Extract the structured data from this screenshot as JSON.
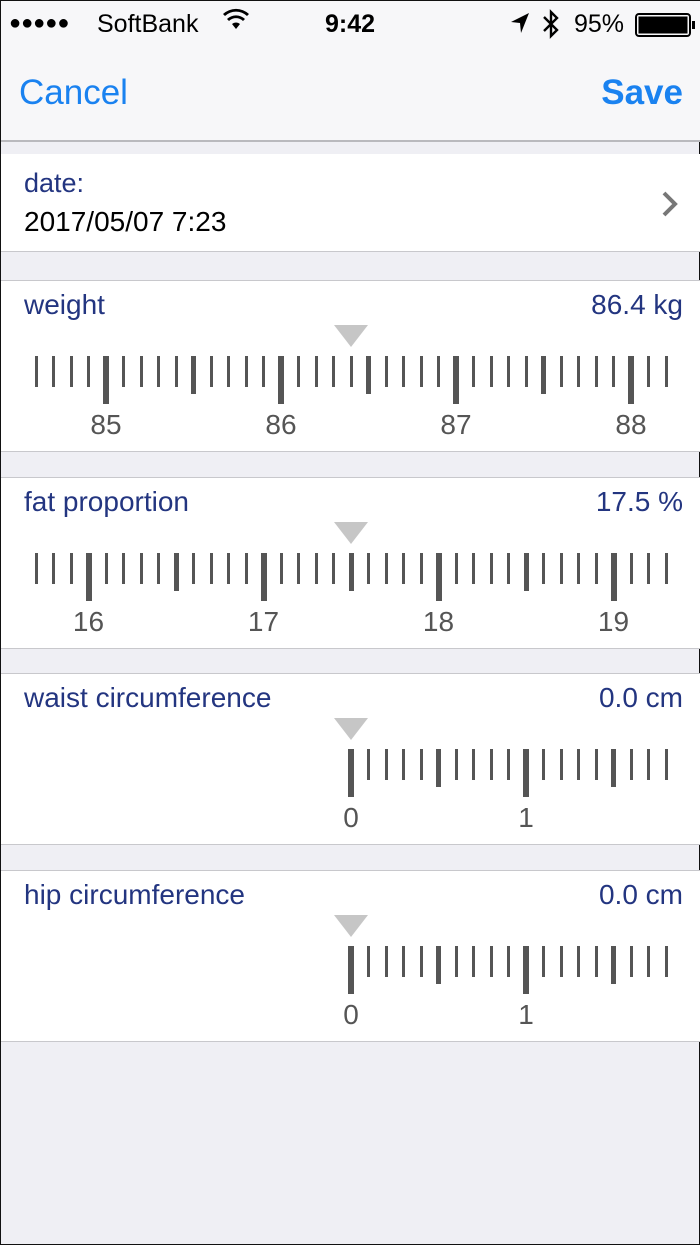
{
  "status_bar": {
    "signal": "●●●●●",
    "carrier": "SoftBank",
    "wifi_icon": "wifi-icon",
    "time": "9:42",
    "location_icon": "location-arrow-icon",
    "bluetooth_icon": "bluetooth-icon",
    "battery": "95%",
    "battery_level": 0.95
  },
  "nav": {
    "cancel": "Cancel",
    "save": "Save",
    "accent": "#1a82f0"
  },
  "date": {
    "label": "date:",
    "value": "2017/05/07 7:23"
  },
  "measurements": [
    {
      "label": "weight",
      "value": "86.4 kg",
      "current": 86.4,
      "min": null,
      "ticks": [
        "85",
        "86",
        "87",
        "88"
      ]
    },
    {
      "label": "fat proportion",
      "value": "17.5 %",
      "current": 17.5,
      "min": null,
      "ticks": [
        "16",
        "17",
        "18",
        "19"
      ]
    },
    {
      "label": "waist circumference",
      "value": "0.0 cm",
      "current": 0.0,
      "min": 0,
      "ticks": [
        "0",
        "1"
      ]
    },
    {
      "label": "hip circumference",
      "value": "0.0 cm",
      "current": 0.0,
      "min": 0,
      "ticks": [
        "0",
        "1"
      ]
    }
  ]
}
